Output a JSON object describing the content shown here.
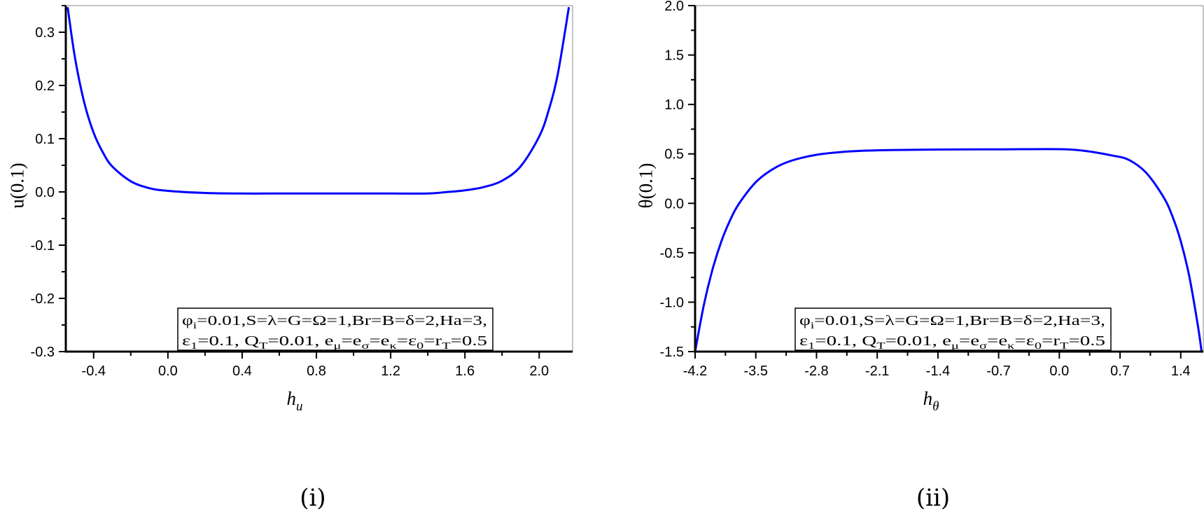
{
  "chart_data": [
    {
      "type": "line",
      "caption": "(i)",
      "ylabel": "u(0.1)",
      "xlabel": {
        "main": "h",
        "sub": "u"
      },
      "xlim": [
        -0.55,
        2.18
      ],
      "ylim": [
        -0.3,
        0.35
      ],
      "xticks": [
        -0.4,
        0.0,
        0.4,
        0.8,
        1.2,
        1.6,
        2.0
      ],
      "xtick_labels": [
        "-0.4",
        "0.0",
        "0.4",
        "0.8",
        "1.2",
        "1.6",
        "2.0"
      ],
      "yticks": [
        -0.3,
        -0.2,
        -0.1,
        0.0,
        0.1,
        0.2,
        0.3
      ],
      "ytick_labels": [
        "-0.3",
        "-0.2",
        "-0.1",
        "0.0",
        "0.1",
        "0.2",
        "0.3"
      ],
      "grid": false,
      "legend_placement": "bottom-center",
      "color": "#0000ff",
      "x": [
        -0.54,
        -0.5,
        -0.45,
        -0.4,
        -0.35,
        -0.3,
        -0.2,
        -0.1,
        0.0,
        0.2,
        0.4,
        0.6,
        0.8,
        1.0,
        1.2,
        1.4,
        1.5,
        1.6,
        1.7,
        1.8,
        1.9,
        2.0,
        2.05,
        2.1,
        2.16
      ],
      "y": [
        0.347,
        0.251,
        0.167,
        0.111,
        0.074,
        0.048,
        0.02,
        0.007,
        0.002,
        -0.002,
        -0.003,
        -0.003,
        -0.003,
        -0.003,
        -0.003,
        -0.003,
        -0.0003,
        0.003,
        0.009,
        0.021,
        0.048,
        0.104,
        0.152,
        0.221,
        0.347
      ],
      "legend_lines": [
        [
          {
            "t": "φ"
          },
          {
            "s": "i"
          },
          {
            "t": "=0.01,S=λ=G=Ω=1,Br=B=δ=2,Ha=3,"
          }
        ],
        [
          {
            "t": "ε"
          },
          {
            "s": "1"
          },
          {
            "t": "=0.1, Q"
          },
          {
            "s": "T"
          },
          {
            "t": "=0.01, e"
          },
          {
            "s": "μ"
          },
          {
            "t": "=e"
          },
          {
            "s": "σ"
          },
          {
            "t": "=e"
          },
          {
            "s": "κ"
          },
          {
            "t": "=ε"
          },
          {
            "s": "0"
          },
          {
            "t": "=r"
          },
          {
            "s": "T"
          },
          {
            "t": "=0.5"
          }
        ]
      ]
    },
    {
      "type": "line",
      "caption": "(ii)",
      "ylabel": "θ(0.1)",
      "xlabel": {
        "main": "h",
        "sub": "θ"
      },
      "xlim": [
        -4.2,
        1.66
      ],
      "ylim": [
        -1.5,
        2.0
      ],
      "xticks": [
        -4.2,
        -3.5,
        -2.8,
        -2.1,
        -1.4,
        -0.7,
        0.0,
        0.7,
        1.4
      ],
      "xtick_labels": [
        "-4.2",
        "-3.5",
        "-2.8",
        "-2.1",
        "-1.4",
        "-0.7",
        "0.0",
        "0.7",
        "1.4"
      ],
      "yticks": [
        -1.5,
        -1.0,
        -0.5,
        0.0,
        0.5,
        1.0,
        1.5,
        2.0
      ],
      "ytick_labels": [
        "-1.5",
        "-1.0",
        "-0.5",
        "0.0",
        "0.5",
        "1.0",
        "1.5",
        "2.0"
      ],
      "grid": false,
      "legend_placement": "bottom-center",
      "color": "#0000ff",
      "x": [
        -4.2,
        -4.1,
        -4.0,
        -3.9,
        -3.8,
        -3.7,
        -3.5,
        -3.3,
        -3.1,
        -2.8,
        -2.4,
        -2.0,
        -1.4,
        -0.7,
        0.0,
        0.3,
        0.6,
        0.8,
        1.0,
        1.2,
        1.3,
        1.4,
        1.5,
        1.6,
        1.64
      ],
      "y": [
        -1.5,
        -1.032,
        -0.671,
        -0.392,
        -0.178,
        -0.012,
        0.214,
        0.348,
        0.428,
        0.491,
        0.526,
        0.538,
        0.544,
        0.546,
        0.548,
        0.53,
        0.485,
        0.44,
        0.31,
        0.065,
        -0.122,
        -0.383,
        -0.746,
        -1.251,
        -1.5
      ],
      "legend_lines": [
        [
          {
            "t": "φ"
          },
          {
            "s": "i"
          },
          {
            "t": "=0.01,S=λ=G=Ω=1,Br=B=δ=2,Ha=3,"
          }
        ],
        [
          {
            "t": "ε"
          },
          {
            "s": "1"
          },
          {
            "t": "=0.1, Q"
          },
          {
            "s": "T"
          },
          {
            "t": "=0.01, e"
          },
          {
            "s": "μ"
          },
          {
            "t": "=e"
          },
          {
            "s": "σ"
          },
          {
            "t": "=e"
          },
          {
            "s": "κ"
          },
          {
            "t": "=ε"
          },
          {
            "s": "0"
          },
          {
            "t": "=r"
          },
          {
            "s": "T"
          },
          {
            "t": "=0.5"
          }
        ]
      ]
    }
  ]
}
